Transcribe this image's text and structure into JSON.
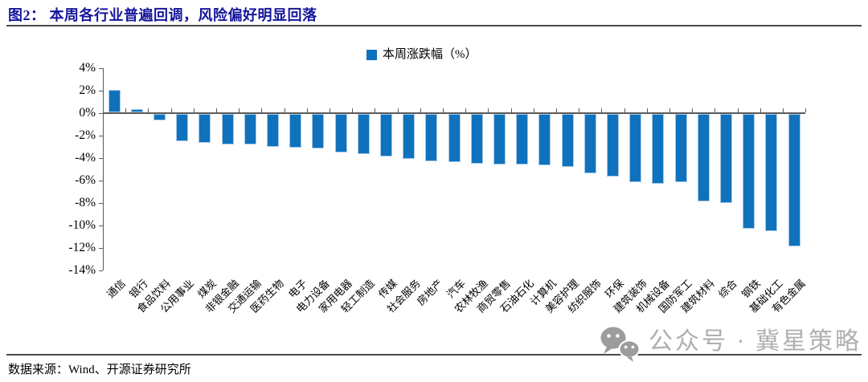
{
  "header": {
    "title": "图2： 本周各行业普遍回调，风险偏好明显回落"
  },
  "chart_data": {
    "type": "bar",
    "legend": [
      "本周涨跌幅（%）"
    ],
    "legend_position": "top-center",
    "categories": [
      "通信",
      "银行",
      "食品饮料",
      "公用事业",
      "煤炭",
      "非银金融",
      "交通运输",
      "医药生物",
      "电子",
      "电力设备",
      "家用电器",
      "轻工制造",
      "传媒",
      "社会服务",
      "房地产",
      "汽车",
      "农林牧渔",
      "商贸零售",
      "石油石化",
      "计算机",
      "美容护理",
      "纺织服饰",
      "环保",
      "建筑装饰",
      "机械设备",
      "国防军工",
      "建筑材料",
      "综合",
      "钢铁",
      "基础化工",
      "有色金属"
    ],
    "values": [
      2.0,
      0.3,
      -0.6,
      -2.4,
      -2.6,
      -2.7,
      -2.7,
      -2.9,
      -3.0,
      -3.1,
      -3.4,
      -3.6,
      -3.8,
      -4.0,
      -4.2,
      -4.3,
      -4.4,
      -4.5,
      -4.5,
      -4.6,
      -4.7,
      -5.3,
      -5.6,
      -6.1,
      -6.2,
      -6.1,
      -7.8,
      -7.9,
      -10.2,
      -10.4,
      -11.8
    ],
    "xlabel": "",
    "ylabel": "",
    "ylim": [
      -14,
      4
    ],
    "ytick_labels": [
      "4%",
      "2%",
      "0%",
      "-2%",
      "-4%",
      "-6%",
      "-8%",
      "-10%",
      "-12%",
      "-14%"
    ],
    "grid": false,
    "x_label_rotation_deg": -45
  },
  "footer": {
    "source": "数据来源：Wind、开源证券研究所",
    "watermark": "公众号 · 冀星策略"
  },
  "colors": {
    "bar": "#1072BC",
    "bar_edge": "#A6C9E8",
    "title": "#15159B",
    "axis": "#5A5A5A",
    "divider": "#4A4A4A",
    "watermark_text": "#AFAFAF",
    "watermark_icon": "#9C9C9C"
  }
}
